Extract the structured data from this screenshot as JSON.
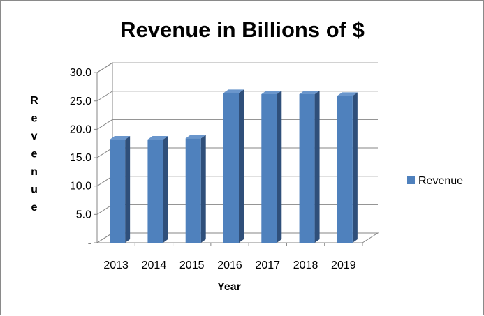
{
  "chart_data": {
    "type": "bar",
    "title": "Revenue in Billions of $",
    "xlabel": "Year",
    "ylabel": "Revenue",
    "categories": [
      "2013",
      "2014",
      "2015",
      "2016",
      "2017",
      "2018",
      "2019"
    ],
    "series": [
      {
        "name": "Revenue",
        "values": [
          18.2,
          18.2,
          18.4,
          26.4,
          26.2,
          26.2,
          25.9
        ]
      }
    ],
    "ylim": [
      0,
      30
    ],
    "yticks": [
      "-",
      "5.0",
      "10.0",
      "15.0",
      "20.0",
      "25.0",
      "30.0"
    ],
    "grid": true,
    "legend": "right",
    "colors": {
      "bar": "#4F81BD",
      "bar_dark": "#2F4F7A",
      "bar_top": "#6A96CC"
    }
  }
}
